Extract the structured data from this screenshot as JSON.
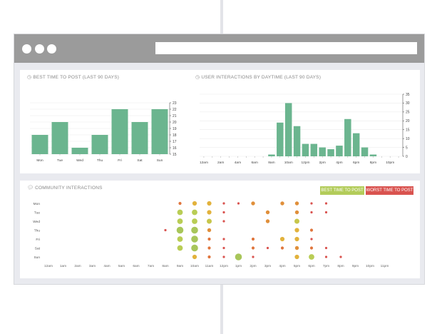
{
  "browser": {
    "url": ""
  },
  "panels": {
    "best_time": {
      "title": "BEST TIME TO POST (LAST 90 DAYS)"
    },
    "interactions": {
      "title": "USER INTERACTIONS BY DAYTIME (LAST 90 DAYS)"
    },
    "community": {
      "title": "COMMUNITY INTERACTIONS",
      "best_label": "BEST TIME TO POST",
      "worst_label": "WORST TIME TO POST"
    }
  },
  "colors": {
    "bar": "#6bb58f",
    "best": "#b3cc5a",
    "worst": "#d9534f"
  },
  "chart_data": [
    {
      "type": "bar",
      "title": "BEST TIME TO POST (LAST 90 DAYS)",
      "categories": [
        "Mon",
        "Tue",
        "Wed",
        "Thu",
        "Fri",
        "Sat",
        "Sun"
      ],
      "values": [
        18,
        20,
        16,
        18,
        22,
        20,
        22
      ],
      "ylim": [
        15,
        23
      ],
      "yticks": [
        15,
        16,
        17,
        18,
        19,
        20,
        21,
        22,
        23
      ],
      "ytick_labels": [
        "15",
        "16",
        "17",
        "18",
        "19",
        "20",
        "21",
        "22",
        "23"
      ],
      "y_axis_side": "right",
      "grid": true
    },
    {
      "type": "bar",
      "title": "USER INTERACTIONS BY DAYTIME (LAST 90 DAYS)",
      "categories": [
        "12am",
        "1am",
        "2am",
        "3am",
        "4am",
        "5am",
        "6am",
        "7am",
        "8am",
        "9am",
        "10am",
        "11am",
        "12pm",
        "1pm",
        "2pm",
        "3pm",
        "4pm",
        "5pm",
        "6pm",
        "7pm",
        "8pm",
        "9pm",
        "10pm",
        "11pm"
      ],
      "x_tick_labels": [
        "12am",
        "2am",
        "4am",
        "6am",
        "8am",
        "10am",
        "12pm",
        "2pm",
        "4pm",
        "6pm",
        "8pm",
        "10pm"
      ],
      "values": [
        0,
        0,
        0,
        0,
        0,
        0,
        0,
        0,
        1,
        19,
        30,
        17,
        7,
        7,
        5,
        4,
        6,
        21,
        13,
        5,
        1,
        0,
        0,
        0
      ],
      "ylim": [
        0,
        35
      ],
      "yticks": [
        0,
        5,
        10,
        15,
        20,
        25,
        30,
        35
      ],
      "ytick_labels": [
        "0",
        "5",
        "10",
        "15",
        "20",
        "25",
        "30",
        "35"
      ],
      "y_axis_side": "right",
      "grid": true
    },
    {
      "type": "scatter",
      "title": "COMMUNITY INTERACTIONS",
      "rows": [
        "Mon",
        "Tue",
        "Wed",
        "Thu",
        "Fri",
        "Sat",
        "Sun"
      ],
      "columns": [
        "12am",
        "1am",
        "2am",
        "3am",
        "4am",
        "5am",
        "6am",
        "7am",
        "8am",
        "9am",
        "10am",
        "11am",
        "12pm",
        "1pm",
        "2pm",
        "3pm",
        "4pm",
        "5pm",
        "6pm",
        "7pm",
        "8pm",
        "9pm",
        "10pm",
        "11pm"
      ],
      "points": [
        {
          "day": "Mon",
          "hour": "9am",
          "value": 2
        },
        {
          "day": "Mon",
          "hour": "10am",
          "value": 4
        },
        {
          "day": "Mon",
          "hour": "11am",
          "value": 4
        },
        {
          "day": "Mon",
          "hour": "12pm",
          "value": 1
        },
        {
          "day": "Mon",
          "hour": "1pm",
          "value": 1
        },
        {
          "day": "Mon",
          "hour": "2pm",
          "value": 3
        },
        {
          "day": "Mon",
          "hour": "4pm",
          "value": 3
        },
        {
          "day": "Mon",
          "hour": "5pm",
          "value": 3
        },
        {
          "day": "Mon",
          "hour": "6pm",
          "value": 1
        },
        {
          "day": "Mon",
          "hour": "7pm",
          "value": 1
        },
        {
          "day": "Tue",
          "hour": "9am",
          "value": 6
        },
        {
          "day": "Tue",
          "hour": "10am",
          "value": 6
        },
        {
          "day": "Tue",
          "hour": "11am",
          "value": 4
        },
        {
          "day": "Tue",
          "hour": "12pm",
          "value": 1
        },
        {
          "day": "Tue",
          "hour": "3pm",
          "value": 3
        },
        {
          "day": "Tue",
          "hour": "5pm",
          "value": 3
        },
        {
          "day": "Tue",
          "hour": "6pm",
          "value": 1
        },
        {
          "day": "Tue",
          "hour": "7pm",
          "value": 1
        },
        {
          "day": "Wed",
          "hour": "9am",
          "value": 6
        },
        {
          "day": "Wed",
          "hour": "10am",
          "value": 6
        },
        {
          "day": "Wed",
          "hour": "11am",
          "value": 5
        },
        {
          "day": "Wed",
          "hour": "12pm",
          "value": 1
        },
        {
          "day": "Wed",
          "hour": "3pm",
          "value": 3
        },
        {
          "day": "Wed",
          "hour": "5pm",
          "value": 5
        },
        {
          "day": "Thu",
          "hour": "8am",
          "value": 1
        },
        {
          "day": "Thu",
          "hour": "9am",
          "value": 8
        },
        {
          "day": "Thu",
          "hour": "10am",
          "value": 8
        },
        {
          "day": "Thu",
          "hour": "11am",
          "value": 3
        },
        {
          "day": "Thu",
          "hour": "5pm",
          "value": 4
        },
        {
          "day": "Thu",
          "hour": "6pm",
          "value": 2
        },
        {
          "day": "Fri",
          "hour": "9am",
          "value": 6
        },
        {
          "day": "Fri",
          "hour": "10am",
          "value": 8
        },
        {
          "day": "Fri",
          "hour": "11am",
          "value": 2
        },
        {
          "day": "Fri",
          "hour": "12pm",
          "value": 1
        },
        {
          "day": "Fri",
          "hour": "2pm",
          "value": 2
        },
        {
          "day": "Fri",
          "hour": "4pm",
          "value": 4
        },
        {
          "day": "Fri",
          "hour": "5pm",
          "value": 4
        },
        {
          "day": "Fri",
          "hour": "6pm",
          "value": 1
        },
        {
          "day": "Sat",
          "hour": "9am",
          "value": 6
        },
        {
          "day": "Sat",
          "hour": "10am",
          "value": 8
        },
        {
          "day": "Sat",
          "hour": "11am",
          "value": 2
        },
        {
          "day": "Sat",
          "hour": "12pm",
          "value": 1
        },
        {
          "day": "Sat",
          "hour": "2pm",
          "value": 2
        },
        {
          "day": "Sat",
          "hour": "3pm",
          "value": 1
        },
        {
          "day": "Sat",
          "hour": "4pm",
          "value": 2
        },
        {
          "day": "Sat",
          "hour": "5pm",
          "value": 3
        },
        {
          "day": "Sat",
          "hour": "6pm",
          "value": 2
        },
        {
          "day": "Sat",
          "hour": "7pm",
          "value": 1
        },
        {
          "day": "Sun",
          "hour": "10am",
          "value": 4
        },
        {
          "day": "Sun",
          "hour": "11am",
          "value": 2
        },
        {
          "day": "Sun",
          "hour": "12pm",
          "value": 1
        },
        {
          "day": "Sun",
          "hour": "1pm",
          "value": 8
        },
        {
          "day": "Sun",
          "hour": "2pm",
          "value": 1
        },
        {
          "day": "Sun",
          "hour": "5pm",
          "value": 4
        },
        {
          "day": "Sun",
          "hour": "6pm",
          "value": 6
        },
        {
          "day": "Sun",
          "hour": "7pm",
          "value": 1
        },
        {
          "day": "Sun",
          "hour": "8pm",
          "value": 1
        }
      ]
    }
  ]
}
